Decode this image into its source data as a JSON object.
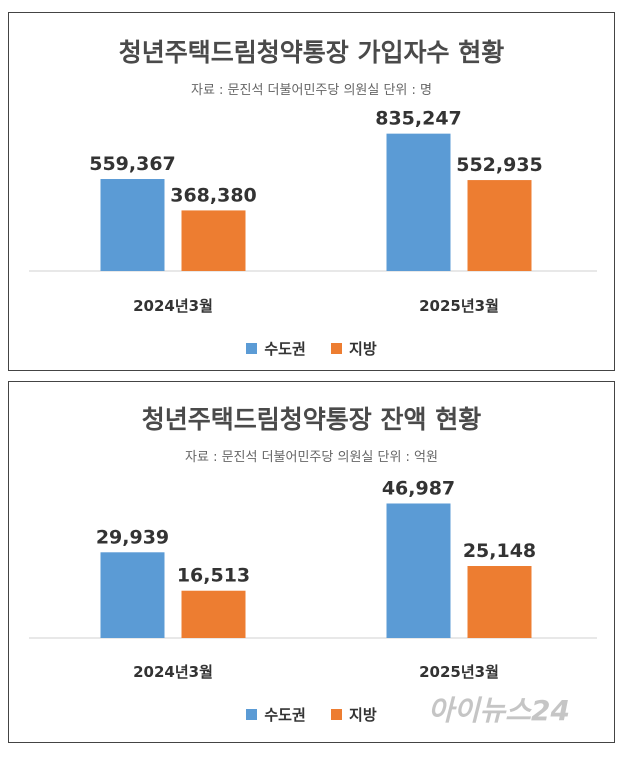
{
  "colors": {
    "capital": "#5B9BD5",
    "regional": "#ED7D31"
  },
  "chart_data": [
    {
      "type": "bar",
      "title": "청년주택드림청약통장 가입자수 현황",
      "subtitle": "자료 : 문진석 더불어민주당 의원실  단위 : 명",
      "categories": [
        "2024년3월",
        "2025년3월"
      ],
      "series": [
        {
          "name": "수도권",
          "values": [
            559367,
            835247
          ],
          "labels": [
            "559,367",
            "835,247"
          ]
        },
        {
          "name": "지방",
          "values": [
            368380,
            552935
          ],
          "labels": [
            "368,380",
            "552,935"
          ]
        }
      ],
      "ylim": [
        0,
        900000
      ],
      "legend": "bottom",
      "grid": false
    },
    {
      "type": "bar",
      "title": "청년주택드림청약통장 잔액 현황",
      "subtitle": "자료 : 문진석 더불어민주당 의원실  단위 : 억원",
      "categories": [
        "2024년3월",
        "2025년3월"
      ],
      "series": [
        {
          "name": "수도권",
          "values": [
            29939,
            46987
          ],
          "labels": [
            "29,939",
            "46,987"
          ]
        },
        {
          "name": "지방",
          "values": [
            16513,
            25148
          ],
          "labels": [
            "16,513",
            "25,148"
          ]
        }
      ],
      "ylim": [
        0,
        51000
      ],
      "legend": "bottom",
      "grid": false
    }
  ],
  "watermark": "아이뉴스24"
}
